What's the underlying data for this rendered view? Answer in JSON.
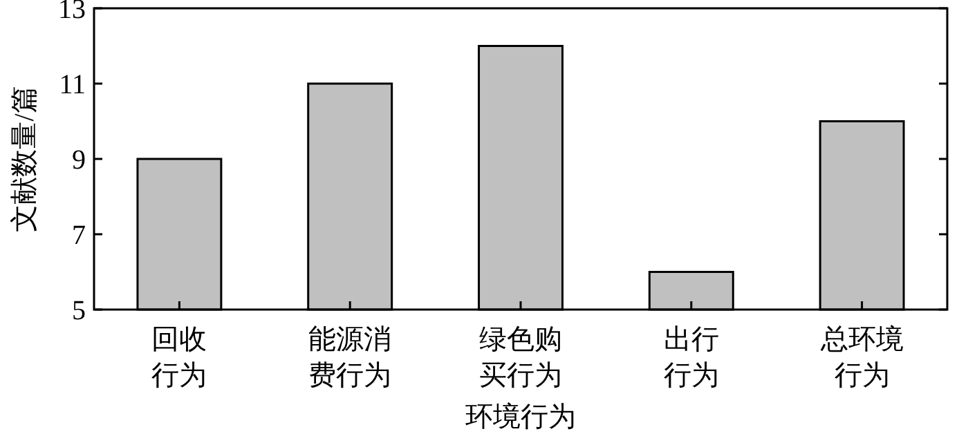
{
  "chart_data": {
    "type": "bar",
    "xlabel": "环境行为",
    "ylabel": "文献数量/篇",
    "categories": [
      "回收行为",
      "能源消费行为",
      "绿色购买行为",
      "出行行为",
      "总环境行为"
    ],
    "values": [
      9,
      11,
      12,
      6,
      10
    ],
    "color": "#c0c0c0",
    "ylim": [
      5,
      13
    ],
    "yticks": [
      5,
      7,
      9,
      11,
      13
    ]
  }
}
